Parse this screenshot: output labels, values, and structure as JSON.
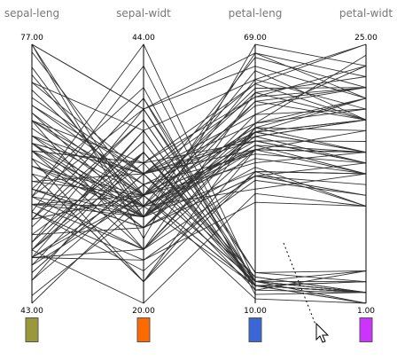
{
  "plot": {
    "axes": [
      {
        "name": "sepal-leng",
        "max_label": "77.00",
        "min_label": "43.00",
        "color": "#9a993a"
      },
      {
        "name": "sepal-widt",
        "max_label": "44.00",
        "min_label": "20.00",
        "color": "#ff6a00"
      },
      {
        "name": "petal-leng",
        "max_label": "69.00",
        "min_label": "10.00",
        "color": "#3a66d8"
      },
      {
        "name": "petal-widt",
        "max_label": "25.00",
        "min_label": "1.00",
        "color": "#cc33ff"
      }
    ]
  },
  "chart_data": {
    "type": "parallel-coordinates",
    "dimensions": [
      "sepal-leng",
      "sepal-widt",
      "petal-leng",
      "petal-widt"
    ],
    "ranges": [
      [
        43,
        77
      ],
      [
        20,
        44
      ],
      [
        10,
        69
      ],
      [
        1,
        25
      ]
    ],
    "records": [
      [
        51,
        35,
        14,
        2
      ],
      [
        49,
        30,
        14,
        2
      ],
      [
        47,
        32,
        13,
        2
      ],
      [
        46,
        31,
        15,
        2
      ],
      [
        50,
        36,
        14,
        2
      ],
      [
        54,
        39,
        17,
        4
      ],
      [
        46,
        34,
        14,
        3
      ],
      [
        50,
        34,
        15,
        2
      ],
      [
        44,
        29,
        14,
        2
      ],
      [
        49,
        31,
        15,
        1
      ],
      [
        54,
        37,
        15,
        2
      ],
      [
        48,
        34,
        16,
        2
      ],
      [
        48,
        30,
        14,
        1
      ],
      [
        43,
        30,
        11,
        1
      ],
      [
        58,
        40,
        12,
        2
      ],
      [
        57,
        44,
        15,
        4
      ],
      [
        54,
        39,
        13,
        4
      ],
      [
        51,
        35,
        14,
        3
      ],
      [
        57,
        38,
        17,
        3
      ],
      [
        51,
        38,
        15,
        3
      ],
      [
        52,
        34,
        14,
        2
      ],
      [
        47,
        32,
        16,
        2
      ],
      [
        55,
        42,
        14,
        2
      ],
      [
        49,
        36,
        14,
        1
      ],
      [
        53,
        37,
        15,
        2
      ],
      [
        50,
        33,
        14,
        2
      ],
      [
        70,
        32,
        47,
        14
      ],
      [
        64,
        32,
        45,
        15
      ],
      [
        69,
        31,
        49,
        15
      ],
      [
        55,
        23,
        40,
        13
      ],
      [
        65,
        28,
        46,
        15
      ],
      [
        57,
        28,
        45,
        13
      ],
      [
        63,
        33,
        47,
        16
      ],
      [
        49,
        24,
        33,
        10
      ],
      [
        66,
        29,
        46,
        13
      ],
      [
        52,
        27,
        39,
        14
      ],
      [
        50,
        20,
        35,
        10
      ],
      [
        59,
        30,
        42,
        15
      ],
      [
        60,
        22,
        40,
        10
      ],
      [
        61,
        29,
        47,
        14
      ],
      [
        56,
        29,
        36,
        13
      ],
      [
        67,
        31,
        44,
        14
      ],
      [
        56,
        30,
        45,
        15
      ],
      [
        58,
        27,
        41,
        10
      ],
      [
        62,
        22,
        45,
        15
      ],
      [
        56,
        25,
        39,
        11
      ],
      [
        59,
        32,
        48,
        18
      ],
      [
        61,
        28,
        40,
        13
      ],
      [
        63,
        25,
        49,
        15
      ],
      [
        64,
        29,
        43,
        13
      ],
      [
        68,
        28,
        48,
        14
      ],
      [
        60,
        29,
        45,
        15
      ],
      [
        55,
        24,
        38,
        11
      ],
      [
        58,
        27,
        39,
        12
      ],
      [
        54,
        30,
        45,
        15
      ],
      [
        67,
        30,
        50,
        17
      ],
      [
        63,
        33,
        60,
        25
      ],
      [
        58,
        27,
        51,
        19
      ],
      [
        71,
        30,
        59,
        21
      ],
      [
        63,
        29,
        56,
        18
      ],
      [
        65,
        30,
        58,
        22
      ],
      [
        76,
        30,
        66,
        21
      ],
      [
        49,
        25,
        45,
        17
      ],
      [
        73,
        29,
        63,
        18
      ],
      [
        67,
        25,
        58,
        18
      ],
      [
        72,
        36,
        61,
        25
      ],
      [
        65,
        32,
        51,
        20
      ],
      [
        64,
        27,
        53,
        19
      ],
      [
        68,
        30,
        55,
        21
      ],
      [
        57,
        25,
        50,
        20
      ],
      [
        58,
        28,
        51,
        24
      ],
      [
        64,
        32,
        53,
        23
      ],
      [
        77,
        38,
        67,
        22
      ],
      [
        77,
        26,
        69,
        23
      ],
      [
        60,
        22,
        50,
        15
      ],
      [
        69,
        32,
        57,
        23
      ],
      [
        56,
        28,
        49,
        20
      ],
      [
        77,
        28,
        67,
        20
      ],
      [
        63,
        27,
        49,
        18
      ],
      [
        67,
        33,
        57,
        21
      ],
      [
        72,
        32,
        60,
        18
      ],
      [
        62,
        28,
        48,
        18
      ],
      [
        61,
        30,
        49,
        18
      ],
      [
        64,
        28,
        56,
        21
      ],
      [
        74,
        28,
        61,
        19
      ],
      [
        79,
        38,
        64,
        20
      ]
    ]
  }
}
